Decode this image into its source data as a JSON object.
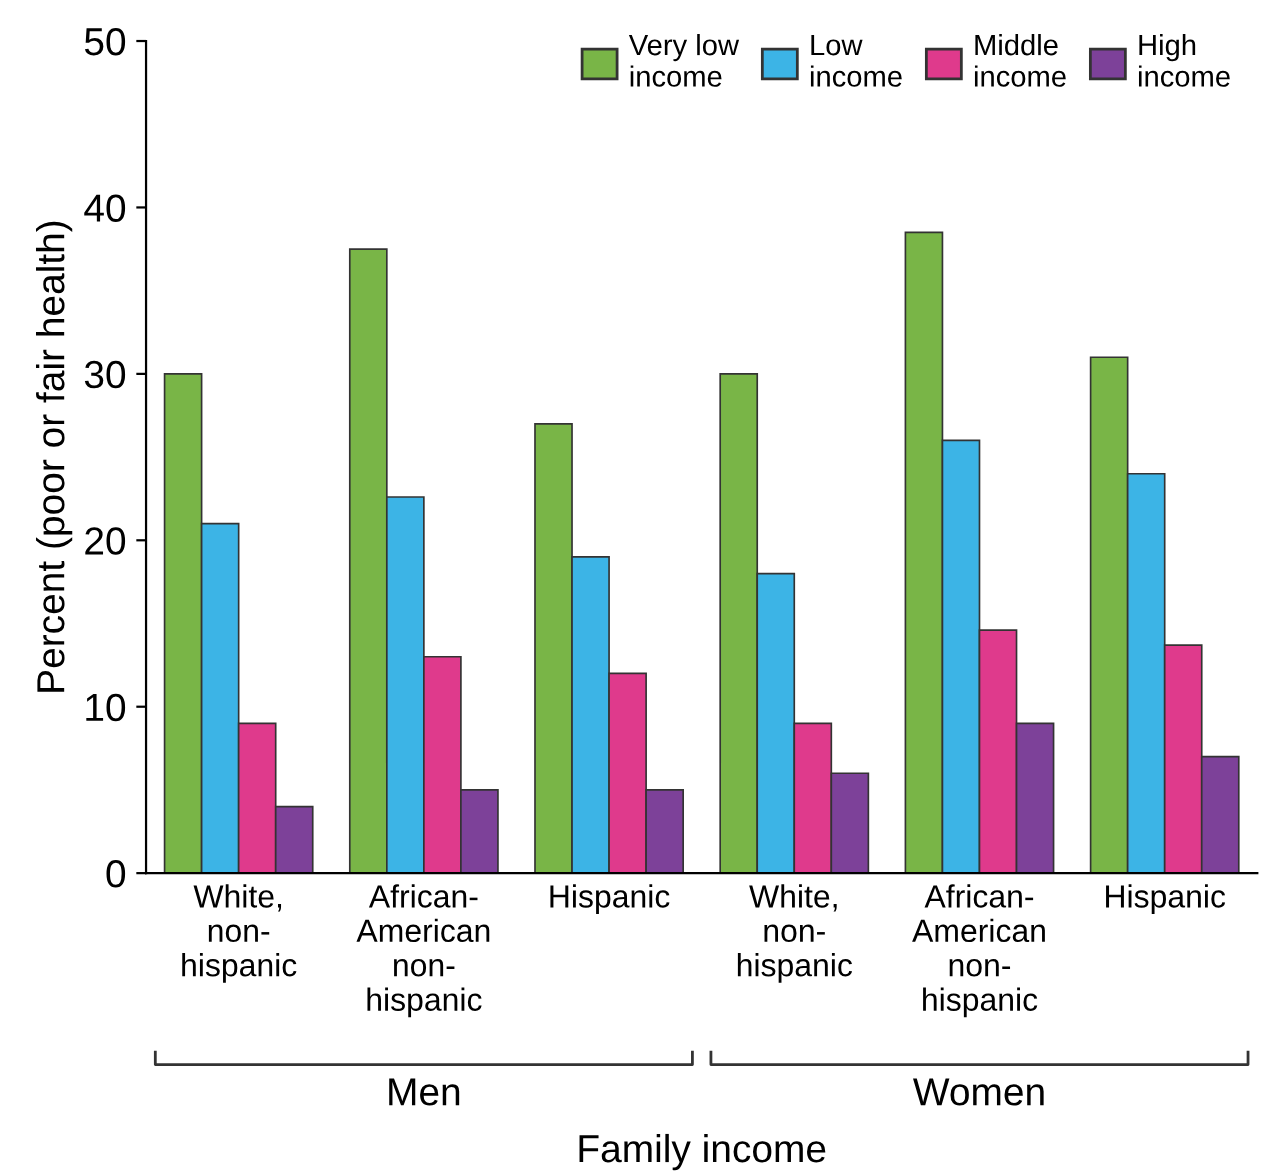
{
  "chart_data": {
    "type": "bar",
    "categories": [
      "White,\nnon-\nhispanic",
      "African-\nAmerican\nnon-\nhispanic",
      "Hispanic",
      "White,\nnon-\nhispanic",
      "African-\nAmerican\nnon-\nhispanic",
      "Hispanic"
    ],
    "series": [
      {
        "name": "Very low\nincome",
        "color": "#79b547",
        "values": [
          30,
          37.5,
          27,
          30,
          38.5,
          31
        ]
      },
      {
        "name": "Low\nincome",
        "color": "#3cb4e6",
        "values": [
          21,
          22.6,
          19,
          18,
          26,
          24
        ]
      },
      {
        "name": "Middle\nincome",
        "color": "#df3a8c",
        "values": [
          9,
          13,
          12,
          9,
          14.6,
          13.7
        ]
      },
      {
        "name": "High\nincome",
        "color": "#7d4199",
        "values": [
          4,
          5,
          5,
          6,
          9,
          7
        ]
      }
    ],
    "xlabel": "Family income",
    "ylabel": "Percent (poor or fair health)",
    "annotations": [
      "Men",
      "Women"
    ],
    "ylim": [
      0,
      50
    ],
    "yticks": [
      0,
      10,
      20,
      30,
      40,
      50
    ],
    "legend": "top right",
    "grid": false
  }
}
